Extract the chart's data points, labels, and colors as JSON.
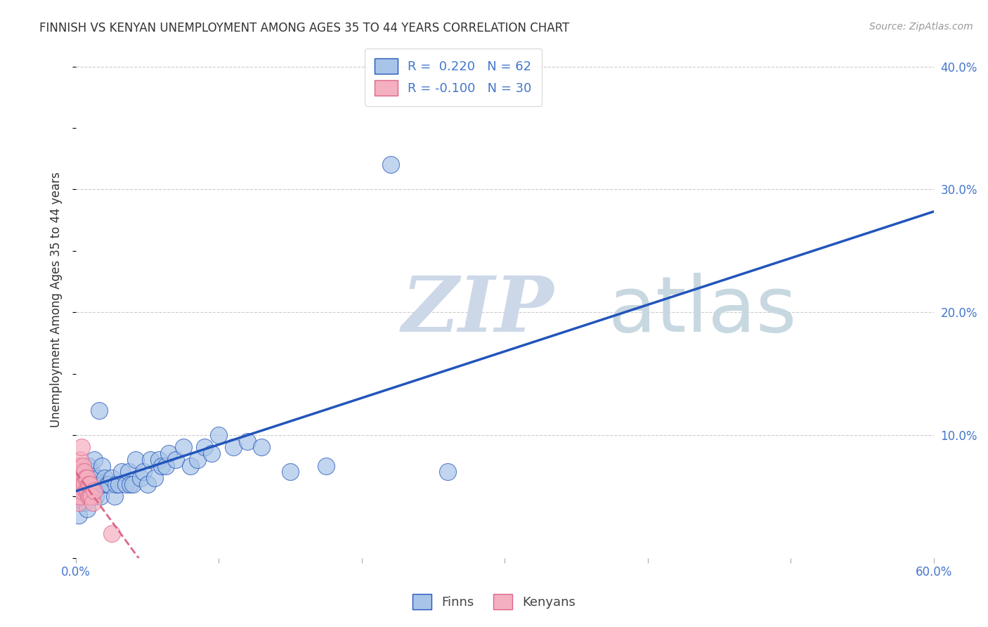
{
  "title": "FINNISH VS KENYAN UNEMPLOYMENT AMONG AGES 35 TO 44 YEARS CORRELATION CHART",
  "source": "Source: ZipAtlas.com",
  "ylabel": "Unemployment Among Ages 35 to 44 years",
  "xlim": [
    0.0,
    0.6
  ],
  "ylim": [
    0.0,
    0.42
  ],
  "xticks": [
    0.0,
    0.1,
    0.2,
    0.3,
    0.4,
    0.5,
    0.6
  ],
  "xtick_labels": [
    "0.0%",
    "",
    "",
    "",
    "",
    "",
    "60.0%"
  ],
  "yticks_right": [
    0.1,
    0.2,
    0.3,
    0.4
  ],
  "ytick_labels_right": [
    "10.0%",
    "20.0%",
    "30.0%",
    "40.0%"
  ],
  "legend_r_finns": "R =  0.220",
  "legend_n_finns": "N = 62",
  "legend_r_kenyans": "R = -0.100",
  "legend_n_kenyans": "N = 30",
  "color_finns": "#a8c4e8",
  "color_kenyans": "#f4afc0",
  "color_trend_finns": "#2255bb",
  "color_trend_kenyans": "#dd6688",
  "watermark_zip": "ZIP",
  "watermark_atlas": "atlas",
  "watermark_color_zip": "#ccd8e8",
  "watermark_color_atlas": "#c8d8e0",
  "background_color": "#ffffff",
  "grid_color": "#cccccc",
  "title_color": "#333333",
  "axis_label_color": "#333333",
  "tick_label_color": "#4477cc",
  "finns_x": [
    0.002,
    0.003,
    0.003,
    0.004,
    0.005,
    0.005,
    0.006,
    0.006,
    0.007,
    0.007,
    0.008,
    0.008,
    0.009,
    0.009,
    0.01,
    0.01,
    0.011,
    0.012,
    0.013,
    0.013,
    0.014,
    0.015,
    0.016,
    0.017,
    0.018,
    0.019,
    0.02,
    0.022,
    0.023,
    0.025,
    0.027,
    0.028,
    0.03,
    0.032,
    0.035,
    0.037,
    0.038,
    0.04,
    0.042,
    0.045,
    0.047,
    0.05,
    0.052,
    0.055,
    0.058,
    0.06,
    0.063,
    0.065,
    0.07,
    0.075,
    0.08,
    0.085,
    0.09,
    0.095,
    0.1,
    0.11,
    0.12,
    0.13,
    0.15,
    0.175,
    0.22,
    0.26
  ],
  "finns_y": [
    0.035,
    0.05,
    0.06,
    0.065,
    0.055,
    0.07,
    0.045,
    0.06,
    0.05,
    0.065,
    0.04,
    0.055,
    0.06,
    0.075,
    0.05,
    0.065,
    0.07,
    0.06,
    0.055,
    0.08,
    0.05,
    0.065,
    0.12,
    0.05,
    0.075,
    0.06,
    0.065,
    0.06,
    0.06,
    0.065,
    0.05,
    0.06,
    0.06,
    0.07,
    0.06,
    0.07,
    0.06,
    0.06,
    0.08,
    0.065,
    0.07,
    0.06,
    0.08,
    0.065,
    0.08,
    0.075,
    0.075,
    0.085,
    0.08,
    0.09,
    0.075,
    0.08,
    0.09,
    0.085,
    0.1,
    0.09,
    0.095,
    0.09,
    0.07,
    0.075,
    0.32,
    0.07
  ],
  "kenyans_x": [
    0.0,
    0.0,
    0.001,
    0.001,
    0.001,
    0.002,
    0.002,
    0.002,
    0.003,
    0.003,
    0.003,
    0.004,
    0.004,
    0.004,
    0.005,
    0.005,
    0.006,
    0.006,
    0.007,
    0.007,
    0.008,
    0.008,
    0.009,
    0.009,
    0.01,
    0.01,
    0.011,
    0.012,
    0.013,
    0.025
  ],
  "kenyans_y": [
    0.06,
    0.07,
    0.05,
    0.06,
    0.075,
    0.045,
    0.06,
    0.075,
    0.05,
    0.065,
    0.08,
    0.055,
    0.07,
    0.09,
    0.06,
    0.075,
    0.06,
    0.07,
    0.055,
    0.065,
    0.055,
    0.065,
    0.05,
    0.06,
    0.05,
    0.06,
    0.05,
    0.045,
    0.055,
    0.02
  ]
}
